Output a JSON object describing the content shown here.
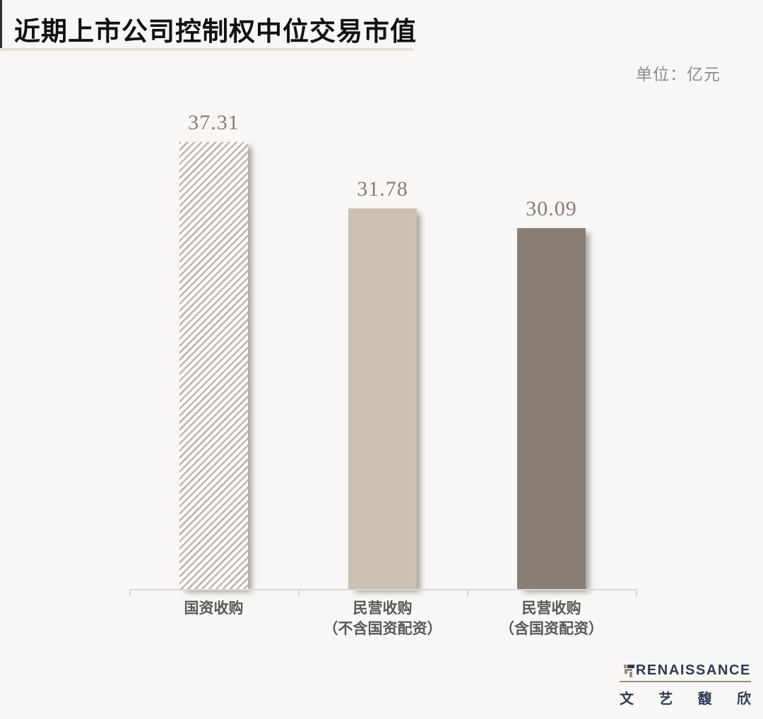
{
  "header": {
    "title": "近期上市公司控制权中位交易市值",
    "unit_label": "单位：亿元"
  },
  "chart_data": {
    "type": "bar",
    "title": "近期上市公司控制权中位交易市值",
    "unit": "亿元",
    "categories": [
      "国资收购",
      "民营收购（不含国资配资）",
      "民营收购（含国资配资）"
    ],
    "values": [
      37.31,
      31.78,
      30.09
    ],
    "value_labels": [
      "37.31",
      "31.78",
      "30.09"
    ],
    "ylim": [
      0,
      40
    ],
    "grid": false,
    "legend": "none",
    "bar_fills": [
      {
        "type": "hatch",
        "stripe_color": "#c3b6aa",
        "background": "#ffffff"
      },
      {
        "type": "solid",
        "color": "#cbc1b3"
      },
      {
        "type": "solid",
        "color": "#8a7d74"
      }
    ],
    "value_label_color": "#8a7b71",
    "category_label_color": "#595959",
    "axis_color": "#d9d9d9"
  },
  "bars": [
    {
      "value_label": "37.31",
      "label_line1": "国资收购",
      "label_line2": ""
    },
    {
      "value_label": "31.78",
      "label_line1": "民营收购",
      "label_line2": "（不含国资配资）"
    },
    {
      "value_label": "30.09",
      "label_line1": "民营收购",
      "label_line2": "（含国资配资）"
    }
  ],
  "logo": {
    "brand": "RENAISSANCE",
    "chinese_chars": [
      "文",
      "艺",
      "馥",
      "欣"
    ],
    "brand_color": "#2e3a52",
    "rule_color": "#9c8d80"
  }
}
